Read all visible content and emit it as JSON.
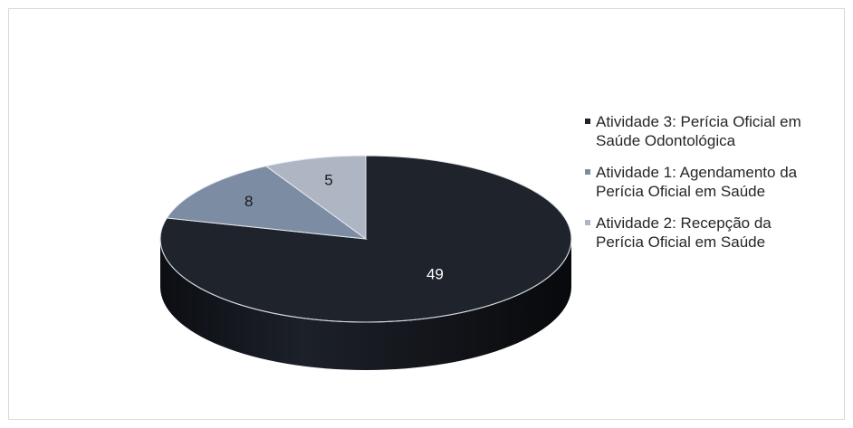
{
  "chart_data": {
    "type": "pie",
    "style": "3d",
    "categories": [
      "Atividade 3: Perícia Oficial em Saúde Odontológica",
      "Atividade 1: Agendamento da Perícia Oficial em Saúde",
      "Atividade 2: Recepção da Perícia Oficial em Saúde"
    ],
    "values": [
      49,
      8,
      5
    ],
    "data_labels": [
      "49",
      "8",
      "5"
    ],
    "colors": [
      "#1f232c",
      "#7c8ca3",
      "#afb6c3"
    ],
    "label_colors": [
      "#ffffff",
      "#1a1a1a",
      "#1a1a1a"
    ],
    "legend_position": "right",
    "title": ""
  },
  "legend": {
    "items": [
      {
        "line1": "Atividade 3: Perícia Oficial em",
        "line2": "Saúde Odontológica",
        "color": "#1f232c"
      },
      {
        "line1": "Atividade 1: Agendamento da",
        "line2": "Perícia Oficial em Saúde",
        "color": "#7c8ca3"
      },
      {
        "line1": "Atividade 2: Recepção da",
        "line2": "Perícia Oficial em Saúde",
        "color": "#afb6c3"
      }
    ]
  }
}
